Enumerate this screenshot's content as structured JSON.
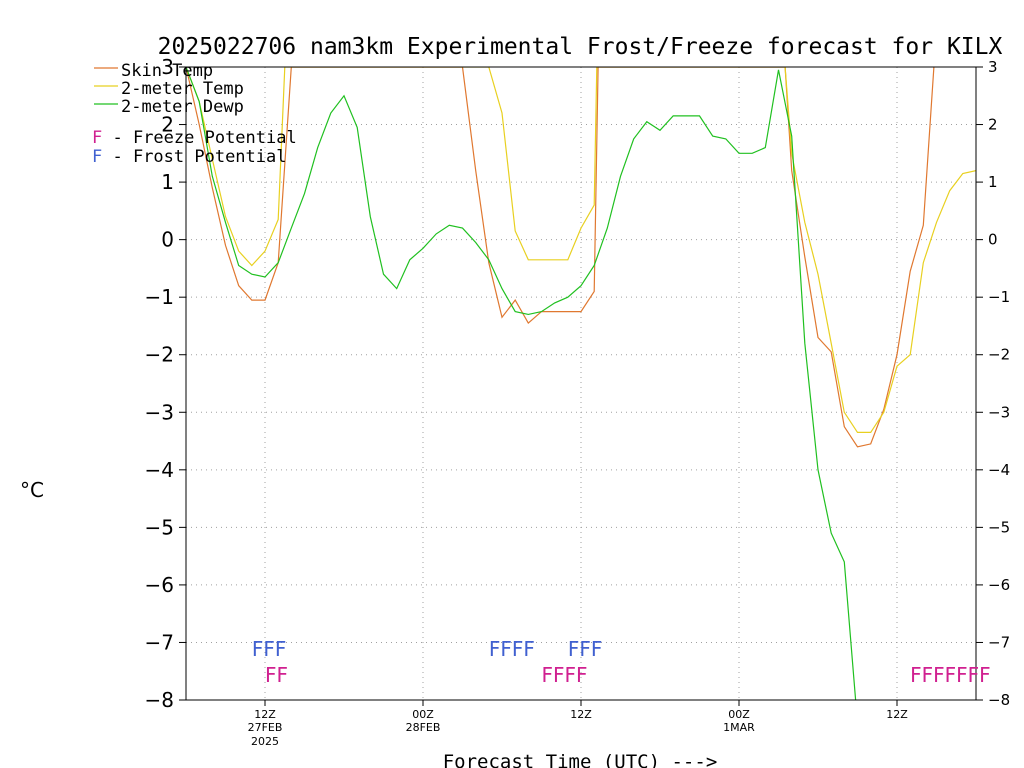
{
  "colors": {
    "skin": "#e07830",
    "temp2m": "#e8d020",
    "dewp": "#20c020",
    "freeze": "#d02090",
    "frost": "#4060d0",
    "grid": "#a0a0a0"
  },
  "chart_data": {
    "type": "line",
    "title": "2025022706 nam3km Experimental Frost/Freeze forecast for KILX",
    "ylabel": "°C",
    "xlabel": "Forecast Time (UTC) --->",
    "ylim": [
      -8,
      3
    ],
    "xlim": [
      6,
      66
    ],
    "yticks": [
      3,
      2,
      1,
      0,
      -1,
      -2,
      -3,
      -4,
      -5,
      -6,
      -7,
      -8
    ],
    "xticks": [
      {
        "x": 12,
        "label": "12Z",
        "sub": "27FEB",
        "sub2": "2025"
      },
      {
        "x": 24,
        "label": "00Z",
        "sub": "28FEB",
        "sub2": ""
      },
      {
        "x": 36,
        "label": "12Z",
        "sub": "",
        "sub2": ""
      },
      {
        "x": 48,
        "label": "00Z",
        "sub": "1MAR",
        "sub2": ""
      },
      {
        "x": 60,
        "label": "12Z",
        "sub": "",
        "sub2": ""
      }
    ],
    "legend": {
      "placement": "top-left",
      "entries": [
        "Skin Temp",
        "2-meter Temp",
        "2-meter Dewp"
      ],
      "potential": [
        {
          "letter": "F",
          "text": " - Freeze Potential"
        },
        {
          "letter": "F",
          "text": " - Frost Potential"
        }
      ]
    },
    "series": [
      {
        "name": "Skin Temp",
        "x": [
          6,
          7,
          8,
          9,
          10,
          11,
          12,
          13,
          14,
          27,
          28,
          29,
          30,
          31,
          32,
          33,
          34,
          35,
          36,
          37,
          37.3,
          51.5,
          52,
          53,
          54,
          55,
          56,
          57,
          58,
          59,
          60,
          61,
          62,
          62.8
        ],
        "y": [
          3,
          2.0,
          0.9,
          -0.1,
          -0.8,
          -1.05,
          -1.05,
          -0.4,
          3,
          3,
          1.2,
          -0.4,
          -1.35,
          -1.05,
          -1.45,
          -1.25,
          -1.25,
          -1.25,
          -1.25,
          -0.9,
          3,
          3,
          1.2,
          -0.3,
          -1.7,
          -1.95,
          -3.25,
          -3.6,
          -3.55,
          -2.95,
          -2.0,
          -0.55,
          0.25,
          3
        ]
      },
      {
        "name": "2-meter Temp",
        "x": [
          6,
          7,
          8,
          9,
          10,
          11,
          12,
          13,
          13.5,
          29,
          30,
          31,
          32,
          33,
          34,
          35,
          36,
          37,
          37.2,
          51.5,
          52,
          53,
          54,
          55,
          56,
          57,
          58,
          59,
          60,
          61,
          62,
          63,
          64,
          65,
          66
        ],
        "y": [
          3,
          2.4,
          1.4,
          0.4,
          -0.2,
          -0.45,
          -0.2,
          0.35,
          3,
          3,
          2.2,
          0.15,
          -0.35,
          -0.35,
          -0.35,
          -0.35,
          0.2,
          0.6,
          3,
          3,
          1.5,
          0.3,
          -0.6,
          -1.8,
          -3.0,
          -3.35,
          -3.35,
          -3.0,
          -2.2,
          -2.0,
          -0.4,
          0.3,
          0.85,
          1.15,
          1.2
        ]
      },
      {
        "name": "2-meter Dewp",
        "x": [
          6,
          7,
          8,
          9,
          10,
          11,
          12,
          13,
          14,
          15,
          16,
          17,
          18,
          19,
          20,
          21,
          22,
          23,
          24,
          25,
          26,
          27,
          28,
          29,
          30,
          31,
          32,
          33,
          34,
          35,
          36,
          37,
          38,
          39,
          40,
          41,
          42,
          43,
          44,
          45,
          46,
          47,
          48,
          49,
          50,
          51,
          52,
          53,
          54,
          55,
          56,
          57
        ],
        "y": [
          3,
          2.4,
          1.1,
          0.3,
          -0.45,
          -0.6,
          -0.65,
          -0.4,
          0.2,
          0.8,
          1.6,
          2.2,
          2.5,
          1.95,
          0.4,
          -0.6,
          -0.85,
          -0.35,
          -0.15,
          0.1,
          0.25,
          0.2,
          -0.05,
          -0.35,
          -0.85,
          -1.25,
          -1.3,
          -1.25,
          -1.1,
          -1.0,
          -0.8,
          -0.45,
          0.2,
          1.1,
          1.75,
          2.05,
          1.9,
          2.15,
          2.15,
          2.15,
          1.8,
          1.75,
          1.5,
          1.5,
          1.6,
          2.95,
          1.8,
          -1.8,
          -4.0,
          -5.1,
          -5.6,
          -8.4
        ]
      }
    ],
    "potential_rows": [
      {
        "kind": "frost",
        "y": -7.1,
        "marks": [
          {
            "x": 11,
            "text": "FFF"
          },
          {
            "x": 29,
            "text": "FFFF"
          },
          {
            "x": 35,
            "text": "FFF"
          }
        ]
      },
      {
        "kind": "freeze",
        "y": -7.55,
        "marks": [
          {
            "x": 12,
            "text": "FF"
          },
          {
            "x": 33,
            "text": "FFFF"
          },
          {
            "x": 61,
            "text": "FFFFFFF"
          }
        ]
      }
    ]
  }
}
